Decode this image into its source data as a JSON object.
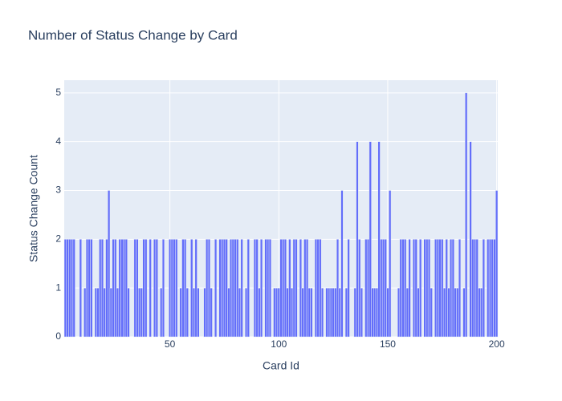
{
  "chart_data": {
    "type": "bar",
    "title": "Number of Status Change by Card",
    "x_label": "Card Id",
    "y_label": "Status Change Count",
    "color": "#636efa",
    "grid": true,
    "xlim": [
      1.5,
      200.5
    ],
    "xticks": [
      50,
      100,
      150,
      200
    ],
    "ylim": [
      0,
      5.26
    ],
    "yticks": [
      0,
      1,
      2,
      3,
      4,
      5
    ],
    "x": [
      2,
      3,
      4,
      5,
      6,
      7,
      8,
      9,
      10,
      11,
      12,
      13,
      14,
      15,
      16,
      17,
      18,
      19,
      20,
      21,
      22,
      23,
      24,
      25,
      26,
      27,
      28,
      29,
      30,
      31,
      32,
      33,
      34,
      35,
      36,
      37,
      38,
      39,
      40,
      41,
      42,
      43,
      44,
      45,
      46,
      47,
      48,
      49,
      50,
      51,
      52,
      53,
      54,
      55,
      56,
      57,
      58,
      59,
      60,
      61,
      62,
      63,
      64,
      65,
      66,
      67,
      68,
      69,
      70,
      71,
      72,
      73,
      74,
      75,
      76,
      77,
      78,
      79,
      80,
      81,
      82,
      83,
      84,
      85,
      86,
      87,
      88,
      89,
      90,
      91,
      92,
      93,
      94,
      95,
      96,
      97,
      98,
      99,
      100,
      101,
      102,
      103,
      104,
      105,
      106,
      107,
      108,
      109,
      110,
      111,
      112,
      113,
      114,
      115,
      116,
      117,
      118,
      119,
      120,
      121,
      122,
      123,
      124,
      125,
      126,
      127,
      128,
      129,
      130,
      131,
      132,
      133,
      134,
      135,
      136,
      137,
      138,
      139,
      140,
      141,
      142,
      143,
      144,
      145,
      146,
      147,
      148,
      149,
      150,
      151,
      152,
      153,
      154,
      155,
      156,
      157,
      158,
      159,
      160,
      161,
      162,
      163,
      164,
      165,
      166,
      167,
      168,
      169,
      170,
      171,
      172,
      173,
      174,
      175,
      176,
      177,
      178,
      179,
      180,
      181,
      182,
      183,
      184,
      185,
      186,
      187,
      188,
      189,
      190,
      191,
      192,
      193,
      194,
      195,
      196,
      197,
      198,
      199,
      200
    ],
    "values": [
      2,
      2,
      2,
      2,
      2,
      0,
      0,
      2,
      0,
      1,
      2,
      2,
      2,
      0,
      1,
      1,
      2,
      2,
      1,
      2,
      3,
      1,
      2,
      2,
      1,
      2,
      2,
      2,
      2,
      1,
      0,
      0,
      2,
      2,
      1,
      1,
      2,
      2,
      0,
      2,
      0,
      2,
      2,
      0,
      1,
      2,
      0,
      0,
      2,
      2,
      2,
      2,
      0,
      1,
      2,
      2,
      1,
      0,
      2,
      1,
      2,
      1,
      0,
      0,
      1,
      2,
      2,
      1,
      0,
      2,
      0,
      2,
      2,
      2,
      2,
      1,
      2,
      2,
      2,
      2,
      1,
      2,
      0,
      1,
      2,
      0,
      0,
      2,
      2,
      1,
      2,
      0,
      2,
      2,
      2,
      0,
      1,
      1,
      1,
      2,
      2,
      2,
      1,
      2,
      1,
      2,
      2,
      0,
      2,
      1,
      2,
      2,
      1,
      1,
      0,
      2,
      2,
      2,
      1,
      0,
      1,
      1,
      1,
      1,
      1,
      2,
      1,
      3,
      0,
      1,
      2,
      0,
      0,
      1,
      4,
      2,
      1,
      0,
      2,
      2,
      4,
      1,
      1,
      1,
      4,
      2,
      2,
      2,
      1,
      3,
      0,
      0,
      0,
      1,
      2,
      2,
      2,
      1,
      2,
      0,
      2,
      2,
      1,
      2,
      0,
      2,
      2,
      2,
      1,
      0,
      2,
      2,
      2,
      2,
      1,
      2,
      1,
      2,
      2,
      1,
      1,
      2,
      0,
      1,
      5,
      0,
      4,
      2,
      2,
      2,
      1,
      1,
      2,
      0,
      2,
      2,
      2,
      2,
      3
    ]
  }
}
